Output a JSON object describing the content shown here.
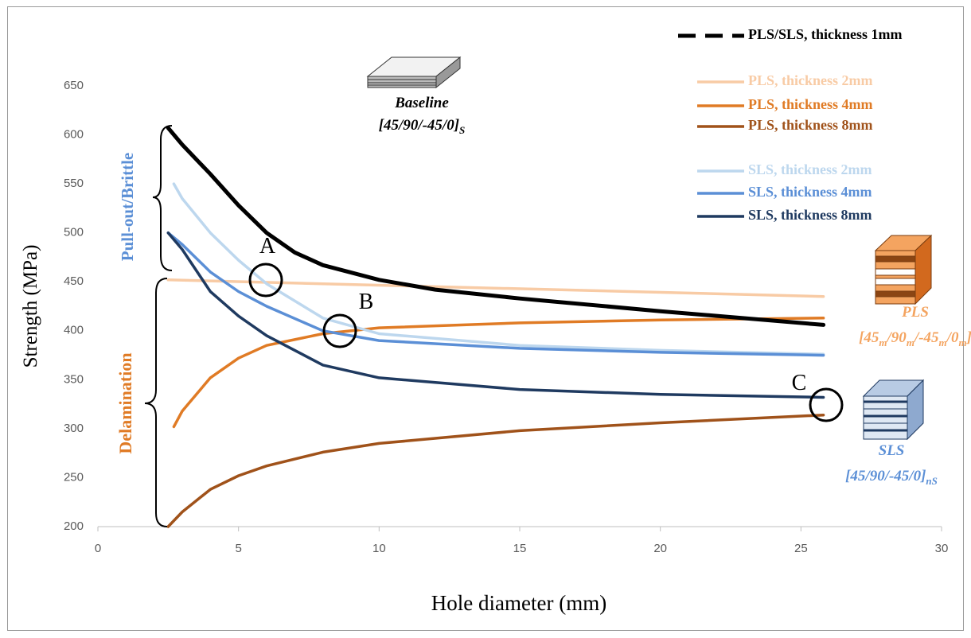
{
  "chart_data": {
    "type": "line",
    "x_label": "Hole diameter (mm)",
    "y_label": "Strength (MPa)",
    "xlim": [
      0,
      30
    ],
    "xticks": [
      0,
      5,
      10,
      15,
      20,
      25,
      30
    ],
    "ylim": [
      200,
      650
    ],
    "yticks": [
      200,
      250,
      300,
      350,
      400,
      450,
      500,
      550,
      600,
      650
    ],
    "grid": false,
    "series": [
      {
        "name": "PLS/SLS, thickness 1mm",
        "color": "#000000",
        "x": [
          2.5,
          3,
          4,
          5,
          6,
          7,
          8,
          10,
          12,
          15,
          20,
          25.8
        ],
        "values": [
          607,
          590,
          560,
          528,
          500,
          480,
          467,
          452,
          442,
          433,
          420,
          406
        ]
      },
      {
        "name": "PLS, thickness 2mm",
        "color": "#f8cba5",
        "x": [
          2.5,
          25.8
        ],
        "values": [
          452,
          435
        ]
      },
      {
        "name": "PLS, thickness 4mm",
        "color": "#e07b25",
        "x": [
          2.7,
          3,
          4,
          5,
          6,
          8,
          10,
          15,
          20,
          25.8
        ],
        "values": [
          302,
          318,
          352,
          372,
          385,
          397,
          403,
          408,
          411,
          413
        ]
      },
      {
        "name": "PLS, thickness 8mm",
        "color": "#a0521a",
        "x": [
          2.5,
          3,
          4,
          5,
          6,
          8,
          10,
          15,
          20,
          25.8
        ],
        "values": [
          200,
          215,
          238,
          252,
          262,
          276,
          285,
          298,
          306,
          314
        ]
      },
      {
        "name": "SLS, thickness 2mm",
        "color": "#bdd7ee",
        "x": [
          2.7,
          3,
          4,
          5,
          6,
          8,
          10,
          15,
          20,
          25.8
        ],
        "values": [
          550,
          535,
          500,
          472,
          448,
          413,
          397,
          385,
          380,
          376
        ]
      },
      {
        "name": "SLS, thickness 4mm",
        "color": "#5b8fd6",
        "x": [
          2.5,
          3,
          4,
          5,
          6,
          8,
          10,
          15,
          20,
          25.8
        ],
        "values": [
          500,
          488,
          460,
          440,
          425,
          400,
          390,
          382,
          378,
          375
        ]
      },
      {
        "name": "SLS, thickness 8mm",
        "color": "#1f3a60",
        "x": [
          2.5,
          3,
          4,
          5,
          6,
          8,
          10,
          15,
          20,
          25.8
        ],
        "values": [
          500,
          483,
          440,
          415,
          395,
          365,
          352,
          340,
          335,
          332
        ]
      }
    ],
    "annotations": {
      "points": [
        "A",
        "B",
        "C"
      ],
      "regions": [
        "Pull-out/Brittle",
        "Delamination"
      ]
    },
    "laminates": [
      {
        "name": "Baseline",
        "layup": [
          {
            "text": "[45/90/-45/0]"
          },
          {
            "text": "S",
            "sub": true
          }
        ]
      },
      {
        "name": "PLS",
        "layup": [
          {
            "text": "[45"
          },
          {
            "text": "m",
            "sub": true
          },
          {
            "text": "/90"
          },
          {
            "text": "m",
            "sub": true
          },
          {
            "text": "/-45"
          },
          {
            "text": "m",
            "sub": true
          },
          {
            "text": "/0"
          },
          {
            "text": "m",
            "sub": true
          },
          {
            "text": "]"
          }
        ]
      },
      {
        "name": "SLS",
        "layup": [
          {
            "text": "[45/90/-45/0]"
          },
          {
            "text": "nS",
            "sub": true
          }
        ]
      }
    ]
  }
}
